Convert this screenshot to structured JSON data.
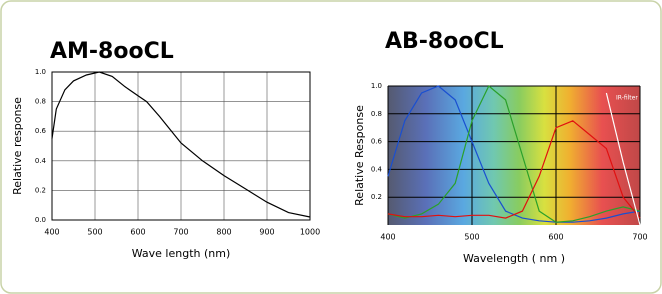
{
  "chart_data": [
    {
      "type": "line",
      "title": "AM-8ooCL",
      "xlabel": "Wave length (nm)",
      "ylabel": "Relative response",
      "x": [
        400,
        410,
        430,
        450,
        480,
        510,
        540,
        570,
        600,
        620,
        650,
        700,
        750,
        800,
        850,
        900,
        950,
        1000
      ],
      "series": [
        {
          "color": "#000000",
          "values": [
            0.55,
            0.75,
            0.88,
            0.94,
            0.98,
            1.0,
            0.97,
            0.9,
            0.84,
            0.8,
            0.7,
            0.52,
            0.4,
            0.3,
            0.21,
            0.12,
            0.05,
            0.02
          ]
        }
      ],
      "xlim": [
        400,
        1000
      ],
      "xticks": [
        400,
        500,
        600,
        700,
        800,
        900,
        1000
      ],
      "ylim": [
        0,
        1.0
      ],
      "yticks": [
        {
          "value": 0,
          "label": "0.0"
        },
        0.2,
        0.4,
        0.6,
        0.8,
        {
          "value": 1.0,
          "label": "1.0"
        }
      ],
      "grid": true
    },
    {
      "type": "line",
      "title": "AB-8ooCL",
      "xlabel": "Wavelength ( nm )",
      "ylabel": "Relative Response",
      "annotation": "IR-filter",
      "x": [
        400,
        420,
        440,
        460,
        480,
        500,
        520,
        540,
        560,
        580,
        600,
        620,
        640,
        660,
        680,
        700
      ],
      "series": [
        {
          "color": "#1a4fd0",
          "values": [
            0.35,
            0.75,
            0.95,
            1.0,
            0.9,
            0.6,
            0.3,
            0.1,
            0.05,
            0.03,
            0.02,
            0.02,
            0.03,
            0.05,
            0.08,
            0.1
          ]
        },
        {
          "color": "#2aa02a",
          "values": [
            0.08,
            0.05,
            0.08,
            0.15,
            0.3,
            0.75,
            1.0,
            0.9,
            0.5,
            0.1,
            0.02,
            0.03,
            0.06,
            0.1,
            0.13,
            0.1
          ]
        },
        {
          "color": "#e01010",
          "values": [
            0.08,
            0.06,
            0.06,
            0.07,
            0.06,
            0.07,
            0.07,
            0.05,
            0.1,
            0.35,
            0.7,
            0.75,
            0.65,
            0.55,
            0.2,
            0.05
          ]
        },
        {
          "color": "#ffffff",
          "values": [
            null,
            null,
            null,
            null,
            null,
            null,
            null,
            null,
            null,
            null,
            null,
            null,
            null,
            0.95,
            0.45,
            0.0
          ]
        }
      ],
      "xlim": [
        400,
        700
      ],
      "xticks": [
        400,
        500,
        600,
        700
      ],
      "ylim": [
        0,
        1.0
      ],
      "yticks": [
        0.2,
        0.4,
        0.6,
        0.8,
        {
          "value": 1.0,
          "label": "1.0"
        }
      ],
      "grid": true
    }
  ]
}
